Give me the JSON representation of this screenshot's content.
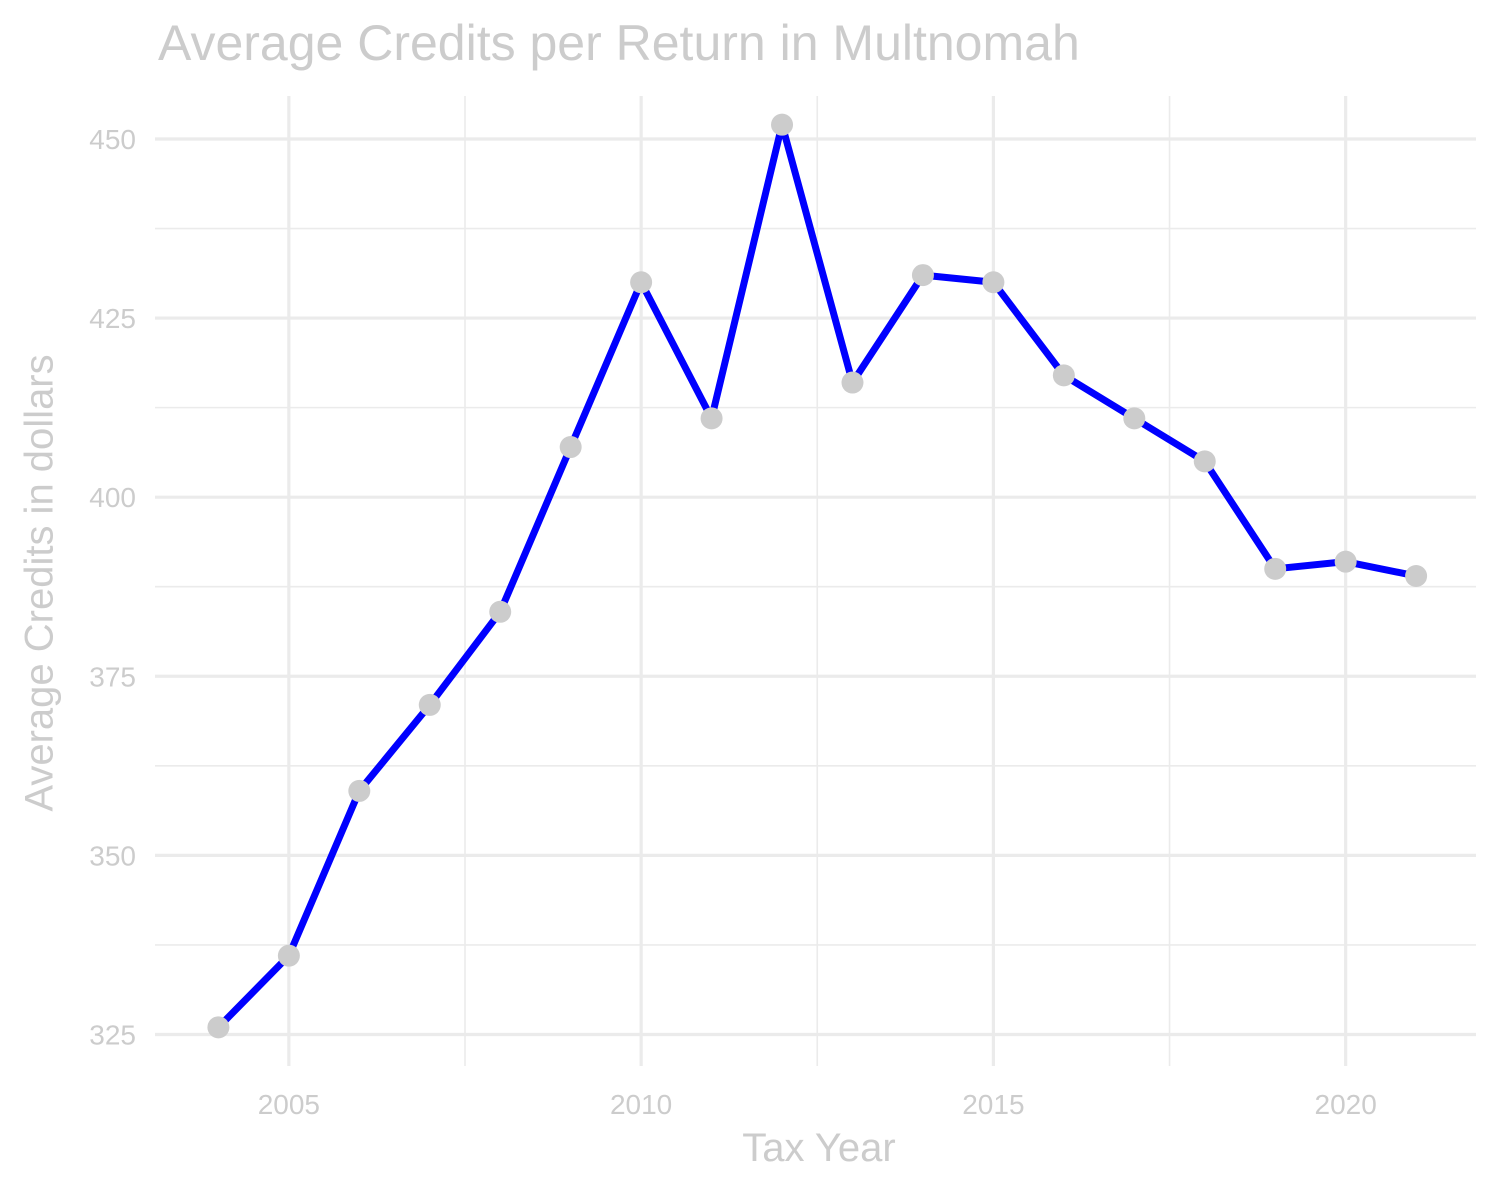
{
  "chart_data": {
    "type": "line",
    "title": "Average Credits per Return in Multnomah",
    "xlabel": "Tax Year",
    "ylabel": "Average Credits in dollars",
    "x": [
      2004,
      2005,
      2006,
      2007,
      2008,
      2009,
      2010,
      2011,
      2012,
      2013,
      2014,
      2015,
      2016,
      2017,
      2018,
      2019,
      2020,
      2021
    ],
    "series": [
      {
        "values": [
          326,
          336,
          359,
          371,
          384,
          407,
          430,
          411,
          452,
          416,
          431,
          430,
          417,
          411,
          405,
          390,
          391,
          389
        ]
      }
    ],
    "xlim": [
      2003.1,
      2021.85
    ],
    "ylim": [
      320.6,
      456
    ],
    "x_ticks": [
      "2005",
      "2010",
      "2015",
      "2020"
    ],
    "y_ticks": [
      "325",
      "350",
      "375",
      "400",
      "425",
      "450"
    ],
    "grid": true,
    "legend": "none",
    "colors": {
      "line": "#0000ff",
      "point": "#cccccc",
      "grid": "#ebebeb",
      "text": "#cccccc"
    }
  }
}
